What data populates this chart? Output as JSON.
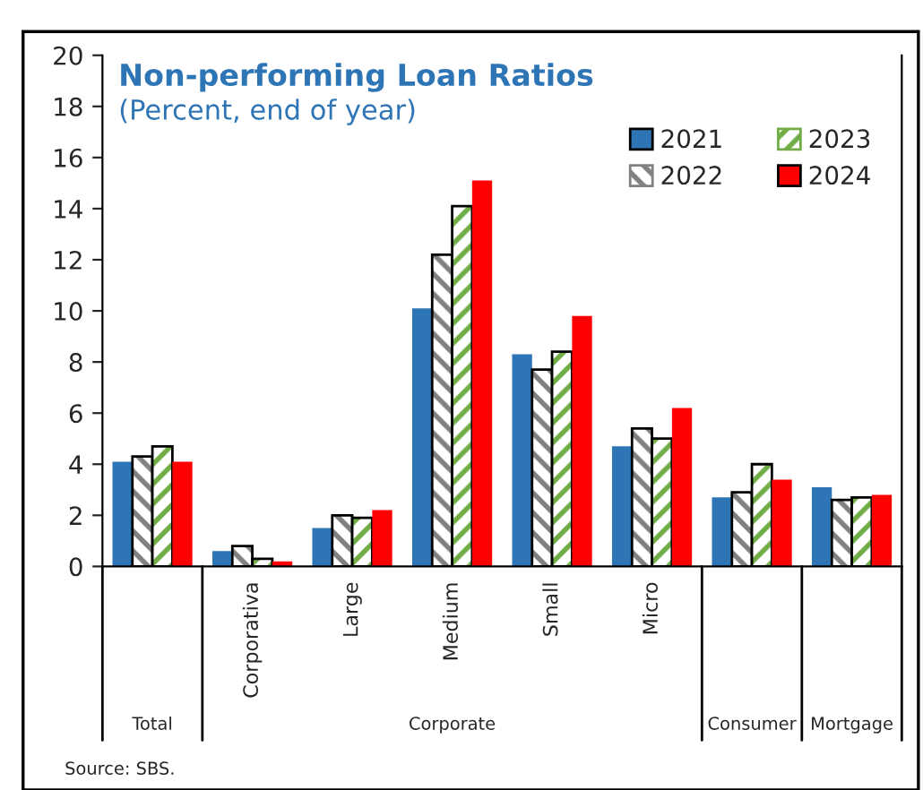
{
  "chart_data": {
    "type": "bar",
    "title": "Non-performing Loan Ratios",
    "subtitle": "(Percent, end of year)",
    "categories": [
      null,
      "Corporativa",
      "Large",
      "Medium",
      "Small",
      "Micro",
      null,
      null
    ],
    "series": [
      {
        "name": "2021",
        "color": "#2e75b6",
        "values": [
          4.1,
          0.6,
          1.5,
          10.1,
          8.3,
          4.7,
          2.7,
          3.1
        ]
      },
      {
        "name": "2022",
        "color": "#808080",
        "values": [
          4.3,
          0.8,
          2.0,
          12.2,
          7.7,
          5.4,
          2.9,
          2.6
        ]
      },
      {
        "name": "2023",
        "color": "#70ad47",
        "values": [
          4.7,
          0.3,
          1.9,
          14.1,
          8.4,
          5.0,
          4.0,
          2.7
        ]
      },
      {
        "name": "2024",
        "color": "#ff0000",
        "values": [
          4.1,
          0.2,
          2.2,
          15.1,
          9.8,
          6.2,
          3.4,
          2.8
        ]
      }
    ],
    "ylim": [
      0,
      20
    ],
    "yticks": [
      0,
      2,
      4,
      6,
      8,
      10,
      12,
      14,
      16,
      18,
      20
    ],
    "legend": "top right",
    "grid": false,
    "annotations": [
      "Total",
      "Corporate",
      "Consumer",
      "Mortgage",
      "Source: SBS."
    ]
  }
}
